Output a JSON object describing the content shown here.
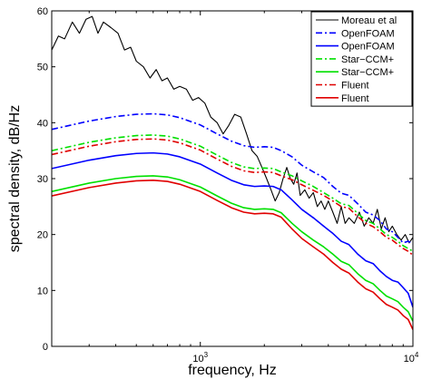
{
  "chart_data": {
    "type": "line",
    "title": "",
    "xlabel": "frequency, Hz",
    "ylabel": "spectral density, dB/Hz",
    "xscale": "log",
    "xlim": [
      200,
      10000
    ],
    "ylim": [
      0,
      60
    ],
    "grid": false,
    "legend_position": "top-right",
    "x_ticks": [
      {
        "value": 1000,
        "base": "10",
        "exp": "3"
      },
      {
        "value": 10000,
        "base": "10",
        "exp": "4"
      }
    ],
    "y_ticks": [
      0,
      10,
      20,
      30,
      40,
      50,
      60
    ],
    "series": [
      {
        "name": "Moreau et al",
        "color": "#000000",
        "dash": "solid",
        "x": [
          200,
          215,
          230,
          250,
          270,
          290,
          310,
          330,
          350,
          380,
          410,
          440,
          470,
          500,
          540,
          580,
          620,
          660,
          700,
          750,
          800,
          860,
          920,
          980,
          1050,
          1120,
          1200,
          1280,
          1360,
          1450,
          1550,
          1650,
          1750,
          1850,
          1950,
          2050,
          2150,
          2250,
          2350,
          2450,
          2550,
          2650,
          2750,
          2850,
          2950,
          3100,
          3250,
          3400,
          3550,
          3700,
          3850,
          4000,
          4200,
          4400,
          4600,
          4800,
          5000,
          5300,
          5600,
          5900,
          6200,
          6500,
          6800,
          7100,
          7400,
          7700,
          8000,
          8400,
          8800,
          9200,
          9600,
          10000
        ],
        "values": [
          53,
          55.5,
          55,
          58,
          56,
          58.5,
          59,
          56,
          58,
          57,
          56,
          53,
          53.5,
          51,
          50,
          48,
          49.5,
          47.5,
          48,
          46,
          46.5,
          46,
          44,
          44.5,
          43.5,
          41,
          40,
          38,
          39.5,
          41.5,
          41,
          38,
          35,
          34,
          32,
          30,
          28,
          26,
          27.5,
          30,
          32,
          30,
          29,
          31,
          27,
          28,
          26.5,
          27.5,
          25,
          26,
          24.5,
          26,
          24,
          22,
          25,
          22,
          23,
          22,
          24,
          21.5,
          23,
          22,
          24.5,
          21,
          23,
          20.5,
          21.5,
          20,
          19,
          20,
          18.5,
          19.5
        ]
      },
      {
        "name": "OpenFOAM",
        "color": "#0000ff",
        "dash": "dashdot",
        "x": [
          200,
          300,
          400,
          500,
          600,
          700,
          800,
          1000,
          1200,
          1400,
          1600,
          1800,
          2000,
          2200,
          2400,
          2700,
          3000,
          3400,
          3800,
          4200,
          4600,
          5000,
          5500,
          6000,
          6500,
          7000,
          7500,
          8000,
          8500,
          9000,
          9500,
          10000
        ],
        "values": [
          38.8,
          40.3,
          41.1,
          41.5,
          41.6,
          41.4,
          40.9,
          39.6,
          38.0,
          36.7,
          35.9,
          35.6,
          35.7,
          35.6,
          35.0,
          33.9,
          32.4,
          31.2,
          30.2,
          28.6,
          27.4,
          27.0,
          25.5,
          24.0,
          23.5,
          22.5,
          21.0,
          20.5,
          19.5,
          18.5,
          18.8,
          18.3
        ]
      },
      {
        "name": "OpenFOAM",
        "color": "#0000ff",
        "dash": "solid",
        "x": [
          200,
          300,
          400,
          500,
          600,
          700,
          800,
          1000,
          1200,
          1400,
          1600,
          1800,
          2000,
          2200,
          2400,
          2700,
          3000,
          3400,
          3800,
          4200,
          4600,
          5000,
          5500,
          6000,
          6500,
          7000,
          7500,
          8000,
          8500,
          9000,
          9500,
          10000
        ],
        "values": [
          31.8,
          33.3,
          34.1,
          34.5,
          34.6,
          34.4,
          33.9,
          32.6,
          31.0,
          29.7,
          28.9,
          28.6,
          28.7,
          28.6,
          28.0,
          26.2,
          24.5,
          23.0,
          21.5,
          20.2,
          18.8,
          18.2,
          16.5,
          15.3,
          14.8,
          13.5,
          12.5,
          11.8,
          11.5,
          10.5,
          9.5,
          7.0
        ]
      },
      {
        "name": "Star−CCM+",
        "color": "#00e000",
        "dash": "dashdot",
        "x": [
          200,
          300,
          400,
          500,
          600,
          700,
          800,
          1000,
          1200,
          1400,
          1600,
          1800,
          2000,
          2200,
          2400,
          2700,
          3000,
          3400,
          3800,
          4200,
          4600,
          5000,
          5500,
          6000,
          6500,
          7000,
          7500,
          8000,
          8500,
          9000,
          9500,
          10000
        ],
        "values": [
          35.0,
          36.5,
          37.3,
          37.7,
          37.8,
          37.6,
          37.1,
          35.8,
          34.2,
          32.9,
          32.1,
          31.8,
          31.9,
          31.8,
          31.2,
          30.5,
          29.6,
          28.6,
          27.5,
          26.5,
          25.5,
          25.2,
          23.8,
          22.5,
          22.0,
          21.0,
          20.0,
          19.5,
          18.8,
          18.0,
          17.5,
          17.0
        ]
      },
      {
        "name": "Star−CCM+",
        "color": "#00e000",
        "dash": "solid",
        "x": [
          200,
          300,
          400,
          500,
          600,
          700,
          800,
          1000,
          1200,
          1400,
          1600,
          1800,
          2000,
          2200,
          2400,
          2700,
          3000,
          3400,
          3800,
          4200,
          4600,
          5000,
          5500,
          6000,
          6500,
          7000,
          7500,
          8000,
          8500,
          9000,
          9500,
          10000
        ],
        "values": [
          27.7,
          29.2,
          30.0,
          30.4,
          30.5,
          30.3,
          29.8,
          28.5,
          26.9,
          25.6,
          24.8,
          24.5,
          24.6,
          24.5,
          23.9,
          22.0,
          20.5,
          19.0,
          17.8,
          16.5,
          15.2,
          14.6,
          13.0,
          11.8,
          11.2,
          10.0,
          9.0,
          8.5,
          8.0,
          7.0,
          6.2,
          4.5
        ]
      },
      {
        "name": "Fluent",
        "color": "#e00000",
        "dash": "dashdot",
        "x": [
          200,
          300,
          400,
          500,
          600,
          700,
          800,
          1000,
          1200,
          1400,
          1600,
          1800,
          2000,
          2200,
          2400,
          2700,
          3000,
          3400,
          3800,
          4200,
          4600,
          5000,
          5500,
          6000,
          6500,
          7000,
          7500,
          8000,
          8500,
          9000,
          9500,
          10000
        ],
        "values": [
          34.3,
          35.8,
          36.6,
          37.0,
          37.1,
          36.9,
          36.4,
          35.1,
          33.5,
          32.2,
          31.4,
          31.1,
          31.2,
          31.1,
          30.5,
          29.8,
          28.9,
          27.9,
          27.0,
          26.0,
          25.0,
          24.7,
          23.2,
          22.0,
          21.4,
          20.5,
          19.5,
          19.0,
          18.2,
          17.5,
          17.0,
          16.3
        ]
      },
      {
        "name": "Fluent",
        "color": "#e00000",
        "dash": "solid",
        "x": [
          200,
          300,
          400,
          500,
          600,
          700,
          800,
          1000,
          1200,
          1400,
          1600,
          1800,
          2000,
          2200,
          2400,
          2700,
          3000,
          3400,
          3800,
          4200,
          4600,
          5000,
          5500,
          6000,
          6500,
          7000,
          7500,
          8000,
          8500,
          9000,
          9500,
          10000
        ],
        "values": [
          26.9,
          28.4,
          29.2,
          29.6,
          29.7,
          29.5,
          29.0,
          27.7,
          26.1,
          24.8,
          24.0,
          23.7,
          23.8,
          23.7,
          23.1,
          21.0,
          19.3,
          17.8,
          16.5,
          15.0,
          13.8,
          13.1,
          11.5,
          10.3,
          9.7,
          8.5,
          7.5,
          7.0,
          6.5,
          5.5,
          4.8,
          3.0
        ]
      }
    ]
  }
}
